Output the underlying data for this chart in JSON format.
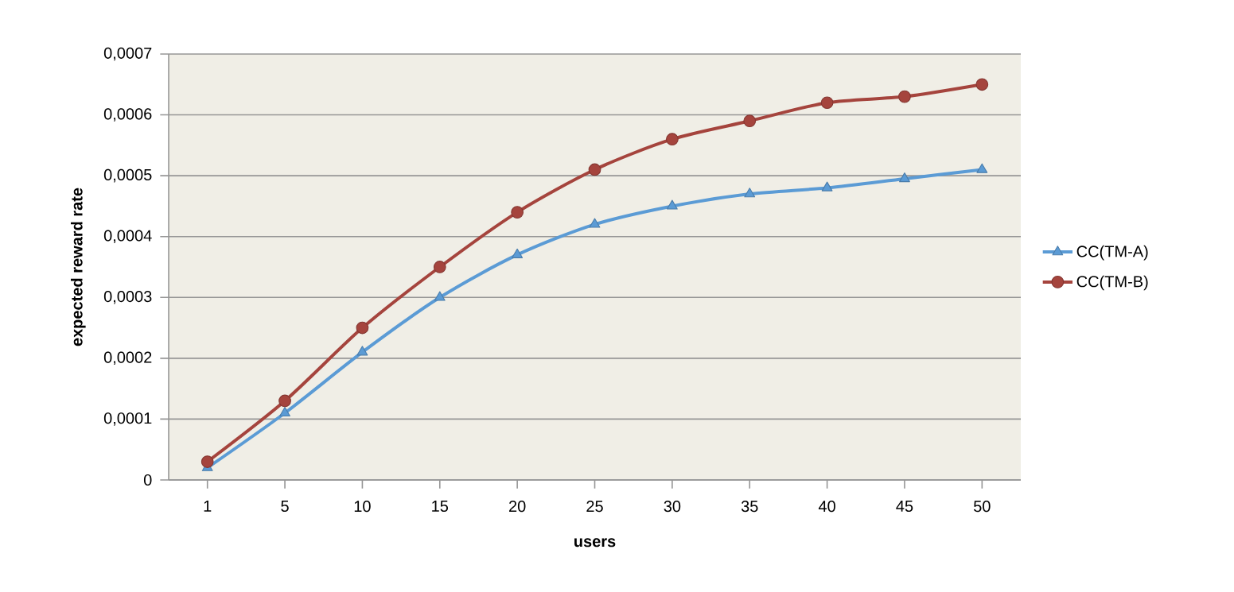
{
  "chart_data": {
    "type": "line",
    "xlabel": "users",
    "ylabel": "expected reward rate",
    "categories": [
      "1",
      "5",
      "10",
      "15",
      "20",
      "25",
      "30",
      "35",
      "40",
      "45",
      "50"
    ],
    "series": [
      {
        "name": "CC(TM-A)",
        "color": "#5b9bd5",
        "marker": "triangle",
        "values": [
          2e-05,
          0.00011,
          0.00021,
          0.0003,
          0.00037,
          0.00042,
          0.00045,
          0.00047,
          0.00048,
          0.000495,
          0.00051
        ]
      },
      {
        "name": "CC(TM-B)",
        "color": "#a5443d",
        "marker": "circle",
        "values": [
          3e-05,
          0.00013,
          0.00025,
          0.00035,
          0.00044,
          0.00051,
          0.00056,
          0.00059,
          0.00062,
          0.00063,
          0.00065
        ]
      }
    ],
    "ylim": [
      0,
      0.0007
    ],
    "yticks": [
      {
        "value": 0,
        "label": "0"
      },
      {
        "value": 0.0001,
        "label": "0,0001"
      },
      {
        "value": 0.0002,
        "label": "0,0002"
      },
      {
        "value": 0.0003,
        "label": "0,0003"
      },
      {
        "value": 0.0004,
        "label": "0,0004"
      },
      {
        "value": 0.0005,
        "label": "0,0005"
      },
      {
        "value": 0.0006,
        "label": "0,0006"
      },
      {
        "value": 0.0007,
        "label": "0,0007"
      }
    ],
    "grid": "y",
    "legend": "right",
    "line_style": "solid"
  }
}
